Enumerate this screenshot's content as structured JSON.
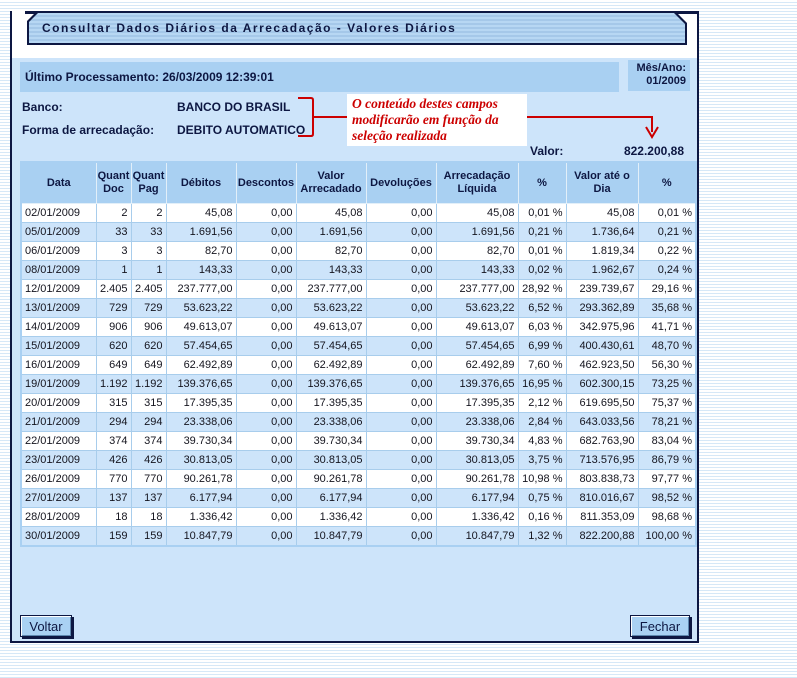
{
  "window": {
    "title": "Consultar Dados Diários da Arrecadação - Valores Diários"
  },
  "info": {
    "ultimo_processamento": "Último Processamento: 26/03/2009 12:39:01",
    "mes_ano_label": "Mês/Ano:",
    "mes_ano_value": "01/2009",
    "banco_label": "Banco:",
    "banco_value": "BANCO DO BRASIL",
    "forma_label": "Forma de arrecadação:",
    "forma_value": "DEBITO AUTOMATICO",
    "valor_label": "Valor:",
    "valor_value": "822.200,88"
  },
  "annotation": {
    "lines": [
      "O conteúdo destes campos",
      "modificarão em função da",
      "seleção realizada"
    ],
    "color": "#cc0000"
  },
  "table": {
    "columns": [
      "Data",
      "Quant\nDoc",
      "Quant\nPag",
      "Débitos",
      "Descontos",
      "Valor\nArrecadado",
      "Devoluções",
      "Arrecadação\nLíquida",
      "%",
      "Valor até o\nDia",
      "%"
    ],
    "rows": [
      [
        "02/01/2009",
        "2",
        "2",
        "45,08",
        "0,00",
        "45,08",
        "0,00",
        "45,08",
        "0,01 %",
        "45,08",
        "0,01 %"
      ],
      [
        "05/01/2009",
        "33",
        "33",
        "1.691,56",
        "0,00",
        "1.691,56",
        "0,00",
        "1.691,56",
        "0,21 %",
        "1.736,64",
        "0,21 %"
      ],
      [
        "06/01/2009",
        "3",
        "3",
        "82,70",
        "0,00",
        "82,70",
        "0,00",
        "82,70",
        "0,01 %",
        "1.819,34",
        "0,22 %"
      ],
      [
        "08/01/2009",
        "1",
        "1",
        "143,33",
        "0,00",
        "143,33",
        "0,00",
        "143,33",
        "0,02 %",
        "1.962,67",
        "0,24 %"
      ],
      [
        "12/01/2009",
        "2.405",
        "2.405",
        "237.777,00",
        "0,00",
        "237.777,00",
        "0,00",
        "237.777,00",
        "28,92 %",
        "239.739,67",
        "29,16 %"
      ],
      [
        "13/01/2009",
        "729",
        "729",
        "53.623,22",
        "0,00",
        "53.623,22",
        "0,00",
        "53.623,22",
        "6,52 %",
        "293.362,89",
        "35,68 %"
      ],
      [
        "14/01/2009",
        "906",
        "906",
        "49.613,07",
        "0,00",
        "49.613,07",
        "0,00",
        "49.613,07",
        "6,03 %",
        "342.975,96",
        "41,71 %"
      ],
      [
        "15/01/2009",
        "620",
        "620",
        "57.454,65",
        "0,00",
        "57.454,65",
        "0,00",
        "57.454,65",
        "6,99 %",
        "400.430,61",
        "48,70 %"
      ],
      [
        "16/01/2009",
        "649",
        "649",
        "62.492,89",
        "0,00",
        "62.492,89",
        "0,00",
        "62.492,89",
        "7,60 %",
        "462.923,50",
        "56,30 %"
      ],
      [
        "19/01/2009",
        "1.192",
        "1.192",
        "139.376,65",
        "0,00",
        "139.376,65",
        "0,00",
        "139.376,65",
        "16,95 %",
        "602.300,15",
        "73,25 %"
      ],
      [
        "20/01/2009",
        "315",
        "315",
        "17.395,35",
        "0,00",
        "17.395,35",
        "0,00",
        "17.395,35",
        "2,12 %",
        "619.695,50",
        "75,37 %"
      ],
      [
        "21/01/2009",
        "294",
        "294",
        "23.338,06",
        "0,00",
        "23.338,06",
        "0,00",
        "23.338,06",
        "2,84 %",
        "643.033,56",
        "78,21 %"
      ],
      [
        "22/01/2009",
        "374",
        "374",
        "39.730,34",
        "0,00",
        "39.730,34",
        "0,00",
        "39.730,34",
        "4,83 %",
        "682.763,90",
        "83,04 %"
      ],
      [
        "23/01/2009",
        "426",
        "426",
        "30.813,05",
        "0,00",
        "30.813,05",
        "0,00",
        "30.813,05",
        "3,75 %",
        "713.576,95",
        "86,79 %"
      ],
      [
        "26/01/2009",
        "770",
        "770",
        "90.261,78",
        "0,00",
        "90.261,78",
        "0,00",
        "90.261,78",
        "10,98 %",
        "803.838,73",
        "97,77 %"
      ],
      [
        "27/01/2009",
        "137",
        "137",
        "6.177,94",
        "0,00",
        "6.177,94",
        "0,00",
        "6.177,94",
        "0,75 %",
        "810.016,67",
        "98,52 %"
      ],
      [
        "28/01/2009",
        "18",
        "18",
        "1.336,42",
        "0,00",
        "1.336,42",
        "0,00",
        "1.336,42",
        "0,16 %",
        "811.353,09",
        "98,68 %"
      ],
      [
        "30/01/2009",
        "159",
        "159",
        "10.847,79",
        "0,00",
        "10.847,79",
        "0,00",
        "10.847,79",
        "1,32 %",
        "822.200,88",
        "100,00 %"
      ]
    ]
  },
  "buttons": {
    "voltar": "Voltar",
    "fechar": "Fechar"
  },
  "colors": {
    "window_border": "#0d1742",
    "panel_bg": "#cde4fa",
    "bar_bg": "#a9d0f2",
    "row_alt_bg": "#cde4fa",
    "annotation_red": "#cc0000",
    "text_dark": "#0d1742"
  }
}
